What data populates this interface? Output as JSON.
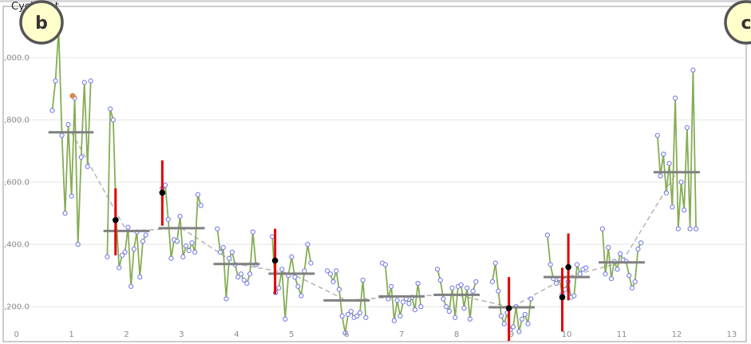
{
  "window": {
    "title": "CyclePlot"
  },
  "badges": {
    "left": "b",
    "right": "c"
  },
  "colors": {
    "series_line": "#86ad55",
    "point_fill": "#ffffff",
    "point_stroke": "#6f74e6",
    "mean_bar": "#808080",
    "trend_line": "#b4b4b4",
    "error_bar": "#e00000",
    "marker": "#000000",
    "highlight": "#d98a4c",
    "badge_fill": "#ffffcc",
    "badge_stroke": "#555555",
    "grid": "#e5e5e5"
  },
  "chart_data": {
    "type": "line",
    "title": "CyclePlot",
    "xlabel": "",
    "ylabel": "",
    "xlim": [
      -0.3,
      13.35
    ],
    "ylim": [
      1080,
      2185
    ],
    "grid": true,
    "x_ticks": [
      0,
      1,
      2,
      3,
      4,
      5,
      6,
      7,
      8,
      9,
      10,
      11,
      12,
      13
    ],
    "y_ticks": [
      {
        "value": 1200,
        "label": ",200.0"
      },
      {
        "value": 1400,
        "label": ",400.0"
      },
      {
        "value": 1600,
        "label": ",600.0"
      },
      {
        "value": 1800,
        "label": ",800.0"
      },
      {
        "value": 2000,
        "label": ",000.0"
      }
    ],
    "cycles": [
      {
        "name": "1",
        "mean": 1760,
        "mean_x": [
          0.58,
          1.4
        ],
        "x_start": 0.65,
        "x_end": 1.35,
        "values": [
          1830,
          1925,
          2090,
          1750,
          1500,
          1785,
          1555,
          1870,
          1400,
          1680,
          1920,
          1650,
          1925
        ]
      },
      {
        "name": "2",
        "mean": 1443,
        "mean_x": [
          1.58,
          2.42
        ],
        "x_start": 1.65,
        "x_end": 2.35,
        "values": [
          1360,
          1835,
          1800,
          1480,
          1325,
          1365,
          1375,
          1455,
          1265,
          1385,
          1440,
          1295,
          1410,
          1430
        ]
      },
      {
        "name": "3",
        "mean": 1452,
        "mean_x": [
          2.58,
          3.42
        ],
        "x_start": 2.65,
        "x_end": 3.35,
        "values": [
          1580,
          1590,
          1480,
          1355,
          1415,
          1410,
          1490,
          1360,
          1395,
          1380,
          1405,
          1375,
          1560,
          1525
        ]
      },
      {
        "name": "4",
        "mean": 1337,
        "mean_x": [
          3.58,
          4.42
        ],
        "x_start": 3.65,
        "x_end": 4.35,
        "values": [
          1450,
          1375,
          1390,
          1225,
          1355,
          1375,
          1335,
          1295,
          1305,
          1285,
          1275,
          1305,
          1440,
          1335
        ]
      },
      {
        "name": "5",
        "mean": 1306,
        "mean_x": [
          4.58,
          5.42
        ],
        "x_start": 4.65,
        "x_end": 5.35,
        "values": [
          1425,
          1245,
          1260,
          1320,
          1160,
          1300,
          1360,
          1295,
          1265,
          1235,
          1315,
          1400,
          1340
        ]
      },
      {
        "name": "6",
        "mean": 1220,
        "mean_x": [
          5.58,
          6.42
        ],
        "x_start": 5.65,
        "x_end": 6.35,
        "values": [
          1315,
          1305,
          1280,
          1315,
          1255,
          1170,
          1115,
          1175,
          1185,
          1165,
          1170,
          1180,
          1285,
          1165
        ]
      },
      {
        "name": "7",
        "mean": 1233,
        "mean_x": [
          6.58,
          7.42
        ],
        "x_start": 6.65,
        "x_end": 7.35,
        "values": [
          1340,
          1335,
          1225,
          1265,
          1155,
          1220,
          1170,
          1215,
          1225,
          1210,
          1230,
          1190,
          1275,
          1200
        ]
      },
      {
        "name": "8",
        "mean": 1238,
        "mean_x": [
          7.58,
          8.42
        ],
        "x_start": 7.65,
        "x_end": 8.35,
        "values": [
          1320,
          1285,
          1225,
          1200,
          1185,
          1260,
          1165,
          1265,
          1270,
          1195,
          1260,
          1160,
          1250,
          1280
        ]
      },
      {
        "name": "9",
        "mean": 1198,
        "mean_x": [
          8.58,
          9.42
        ],
        "x_start": 8.65,
        "x_end": 9.35,
        "values": [
          1280,
          1340,
          1250,
          1170,
          1145,
          1180,
          1125,
          1135,
          1200,
          1120,
          1160,
          1175,
          1145,
          1225
        ]
      },
      {
        "name": "10",
        "mean": 1295,
        "mean_x": [
          9.58,
          10.42
        ],
        "x_start": 9.65,
        "x_end": 10.35,
        "values": [
          1430,
          1335,
          1290,
          1275,
          1290,
          1240,
          1255,
          1280,
          1230,
          1235,
          1335,
          1305,
          1320,
          1325
        ]
      },
      {
        "name": "11",
        "mean": 1342,
        "mean_x": [
          10.58,
          11.42
        ],
        "x_start": 10.65,
        "x_end": 11.35,
        "values": [
          1450,
          1305,
          1390,
          1290,
          1345,
          1320,
          1370,
          1350,
          1345,
          1300,
          1260,
          1280,
          1385,
          1405
        ]
      },
      {
        "name": "12",
        "mean": 1632,
        "mean_x": [
          11.58,
          12.42
        ],
        "x_start": 11.65,
        "x_end": 12.35,
        "values": [
          1750,
          1620,
          1690,
          1565,
          1660,
          1520,
          1870,
          1450,
          1600,
          1510,
          1775,
          1450,
          1960,
          1450
        ]
      }
    ],
    "trend": {
      "x": [
        1.0,
        2.0,
        3.0,
        4.0,
        5.0,
        6.0,
        7.0,
        8.0,
        9.0,
        10.0,
        11.0,
        12.0
      ],
      "y": [
        1760,
        1443,
        1452,
        1337,
        1306,
        1220,
        1233,
        1238,
        1198,
        1295,
        1342,
        1632
      ]
    },
    "markers": [
      {
        "x": 1.8,
        "y": 1478,
        "err_low": 1365,
        "err_high": 1580
      },
      {
        "x": 2.65,
        "y": 1566,
        "err_low": 1460,
        "err_high": 1670
      },
      {
        "x": 4.7,
        "y": 1348,
        "err_low": 1240,
        "err_high": 1450
      },
      {
        "x": 8.95,
        "y": 1195,
        "err_low": 1090,
        "err_high": 1295
      },
      {
        "x": 9.92,
        "y": 1230,
        "err_low": 1120,
        "err_high": 1325
      },
      {
        "x": 10.03,
        "y": 1327,
        "err_low": 1220,
        "err_high": 1435
      }
    ],
    "highlight_point": {
      "x": 1.02,
      "y": 1877
    }
  }
}
